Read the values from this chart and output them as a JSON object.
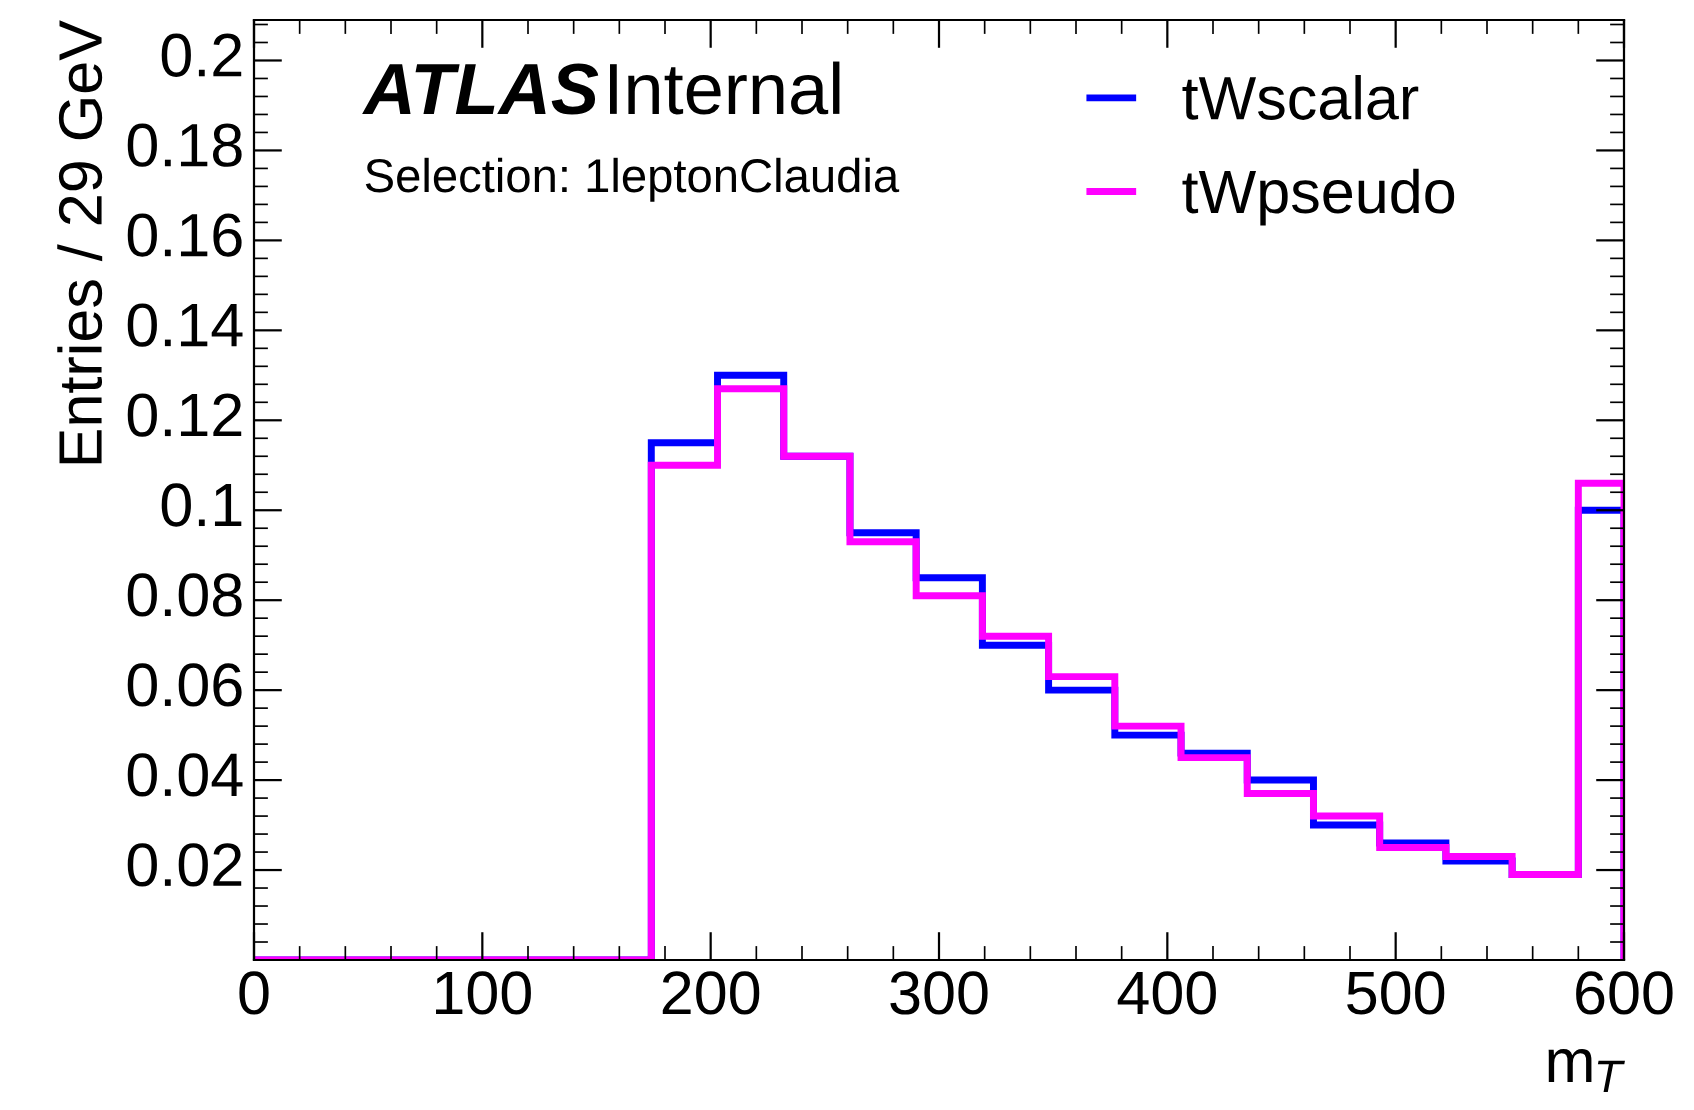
{
  "chart_data": {
    "type": "histogram",
    "xlabel": "m$_{T}$",
    "ylabel": "Entries / 29 GeV",
    "annotations": [
      "ATLAS",
      "Internal",
      "Selection: 1leptonClaudia"
    ],
    "bins": [
      0,
      29,
      58,
      87,
      116,
      145,
      174,
      203,
      232,
      261,
      290,
      319,
      348,
      377,
      406,
      435,
      464,
      493,
      522,
      551,
      580,
      600
    ],
    "series": [
      {
        "name": "tWscalar",
        "color": "#0000ff",
        "values": [
          0,
          0,
          0,
          0,
          0,
          0,
          0.115,
          0.13,
          0.112,
          0.095,
          0.085,
          0.07,
          0.06,
          0.05,
          0.046,
          0.04,
          0.03,
          0.026,
          0.022,
          0.019,
          0.1
        ]
      },
      {
        "name": "tWpseudo",
        "color": "#ff00ff",
        "values": [
          0,
          0,
          0,
          0,
          0,
          0,
          0.11,
          0.127,
          0.112,
          0.093,
          0.081,
          0.072,
          0.063,
          0.052,
          0.045,
          0.037,
          0.032,
          0.025,
          0.023,
          0.019,
          0.106
        ]
      }
    ],
    "xlim": [
      0,
      600
    ],
    "xticks": [
      0,
      100,
      200,
      300,
      400,
      500,
      600
    ],
    "ylim": [
      0,
      0.209
    ],
    "yticks": [
      0.02,
      0.04,
      0.06,
      0.08,
      0.1,
      0.12,
      0.14,
      0.16,
      0.18,
      0.2
    ],
    "legend": "top right",
    "grid": false
  }
}
